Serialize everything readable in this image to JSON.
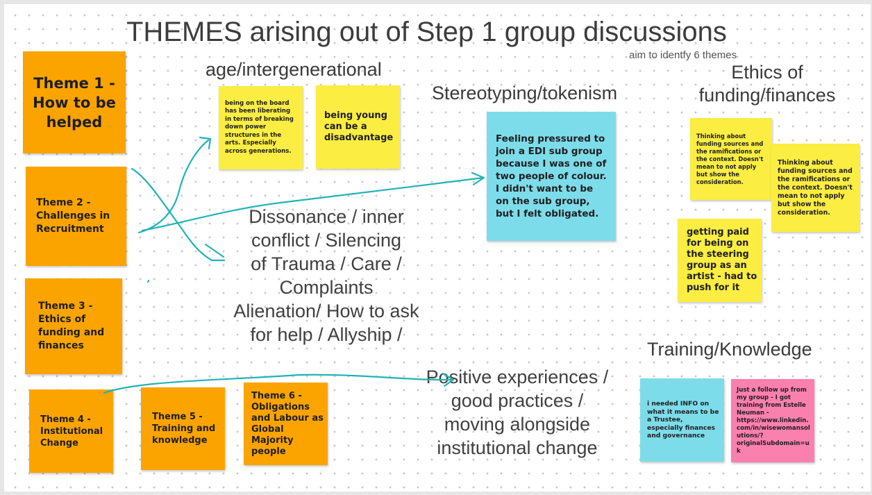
{
  "board": {
    "title": "THEMES arising out of Step 1 group discussions",
    "subtitle": "aim to identfy 6 themes"
  },
  "themes": [
    {
      "label": "Theme 1 - How to be helped"
    },
    {
      "label": "Theme 2 - Challenges in Recruitment"
    },
    {
      "label": "Theme 3 - Ethics of funding and finances"
    },
    {
      "label": "Theme 4 - Institutional Change"
    },
    {
      "label": "Theme 5 - Training and knowledge"
    },
    {
      "label": "Theme 6 - Obligations and Labour as Global Majority people"
    }
  ],
  "clusters": {
    "age": {
      "heading": "age/intergenerational",
      "notes": [
        "being on the board has been liberating in terms of breaking down power structures in the arts. Especially across generations.",
        "being young can be a disadvantage"
      ]
    },
    "stereotyping": {
      "heading": "Stereotyping/tokenism",
      "notes": [
        "Feeling pressured to join a EDI sub group because I was one of two people of colour. I didn't want to be on the sub group, but I felt obligated."
      ]
    },
    "ethics": {
      "heading_line1": "Ethics of",
      "heading_line2": "funding/finances",
      "notes": [
        "Thinking about funding sources and the ramifications or the context. Doesn't mean to not apply but show the consideration.",
        "Thinking about funding sources and the ramifications or the context. Doesn't mean to not apply but show the consideration.",
        "getting paid for being on the steering group as an artist - had to push for it"
      ]
    },
    "dissonance": {
      "lines": [
        "Dissonance / inner",
        "conflict / Silencing",
        "of Trauma / Care /",
        "Complaints",
        "Alienation/ How to ask",
        "for help / Allyship /"
      ]
    },
    "positive": {
      "lines": [
        "Positive experiences /",
        "good practices /",
        "moving alongside",
        "institutional change"
      ]
    },
    "training": {
      "heading": "Training/Knowledge",
      "notes": [
        "i needed INFO on what it means to be a Trustee, especially finances and governance",
        "Just a follow up from my group - I got training from Estelle Neuman - https://www.linkedin.com/in/wisewomansolutions/?originalSubdomain=uk"
      ]
    }
  },
  "colors": {
    "orange": "#fba400",
    "yellow": "#fbed42",
    "cyan": "#7ddcea",
    "pink": "#fa80ae",
    "ink": "#1fb3b7"
  }
}
